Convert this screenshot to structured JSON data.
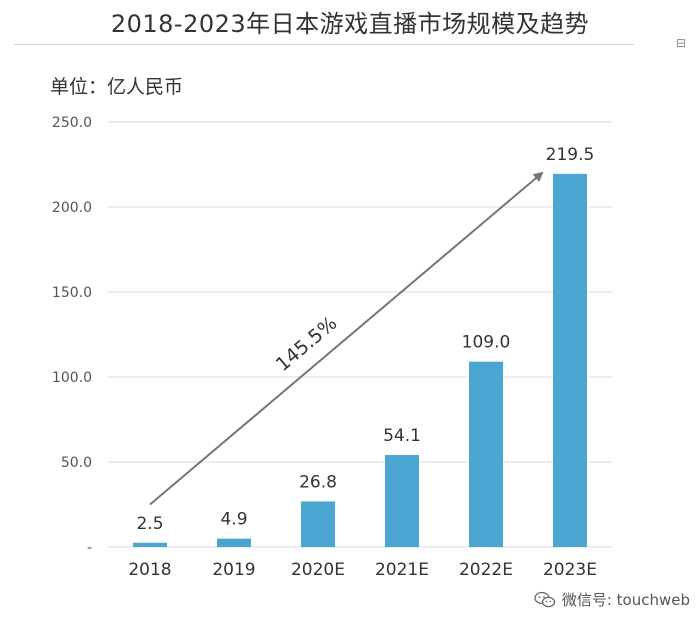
{
  "header": {
    "title": "2018-2023年日本游戏直播市场规模及趋势",
    "unit_label": "单位：亿人民币",
    "corner_mark": "⊟"
  },
  "chart_data": {
    "type": "bar",
    "title": "2018-2023年日本游戏直播市场规模及趋势",
    "ylabel": "单位：亿人民币",
    "xlabel": "",
    "categories": [
      "2018",
      "2019",
      "2020E",
      "2021E",
      "2022E",
      "2023E"
    ],
    "values": [
      2.5,
      4.9,
      26.8,
      54.1,
      109.0,
      219.5
    ],
    "value_labels": [
      "2.5",
      "4.9",
      "26.8",
      "54.1",
      "109.0",
      "219.5"
    ],
    "ylim": [
      0,
      250
    ],
    "yticks": [
      0,
      50,
      100,
      150,
      200,
      250
    ],
    "ytick_labels": [
      "-",
      "50.0",
      "100.0",
      "150.0",
      "200.0",
      "250.0"
    ],
    "grid": true,
    "bar_color": "#4aa6d0",
    "trend_annotation": {
      "label": "145.5%",
      "from": {
        "category": "2018",
        "value": 25
      },
      "to": {
        "category": "2023E",
        "value": 220
      },
      "color": "#757575"
    }
  },
  "watermark": {
    "text": "微信号: touchweb",
    "icon": "wechat-icon"
  }
}
